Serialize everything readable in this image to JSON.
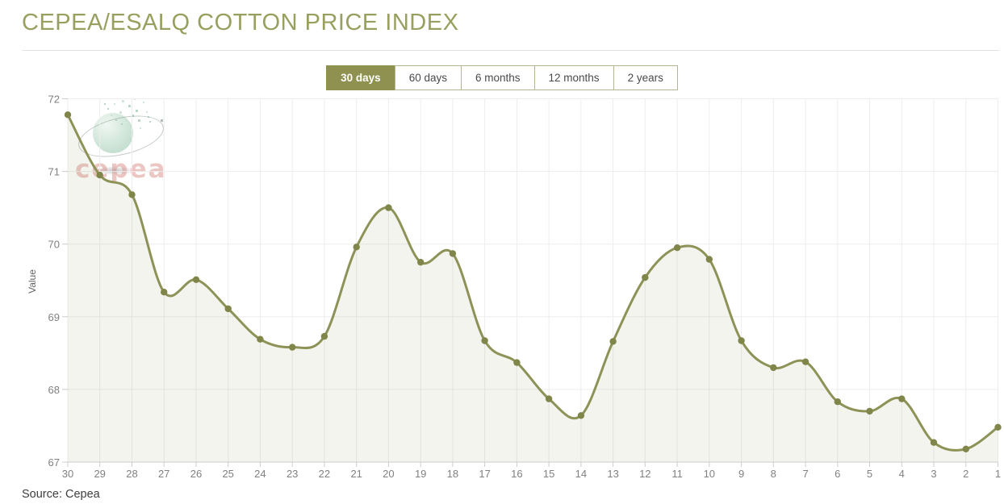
{
  "page": {
    "title": "CEPEA/ESALQ COTTON PRICE INDEX",
    "source": "Source: Cepea"
  },
  "tabs": {
    "items": [
      {
        "label": "30 days",
        "active": true
      },
      {
        "label": "60 days",
        "active": false
      },
      {
        "label": "6 months",
        "active": false
      },
      {
        "label": "12 months",
        "active": false
      },
      {
        "label": "2 years",
        "active": false
      }
    ]
  },
  "watermark": {
    "text": "cepea"
  },
  "colors": {
    "title": "#99a05f",
    "accent": "#8f9150",
    "line": "#8d9257",
    "marker": "#80854a",
    "area": "rgba(141,146,87,0.10)",
    "grid": "#ededed",
    "axis": "#cccccc",
    "tick_label": "#808080",
    "axis_title": "#666666"
  },
  "chart_data": {
    "type": "line",
    "smooth": true,
    "title": "CEPEA/ESALQ COTTON PRICE INDEX",
    "xlabel": "",
    "ylabel": "Value",
    "categories": [
      "30",
      "29",
      "28",
      "27",
      "26",
      "25",
      "24",
      "23",
      "22",
      "21",
      "20",
      "19",
      "18",
      "17",
      "16",
      "15",
      "14",
      "13",
      "12",
      "11",
      "10",
      "9",
      "8",
      "7",
      "6",
      "5",
      "4",
      "3",
      "2",
      "1"
    ],
    "values": [
      71.78,
      70.95,
      70.68,
      69.34,
      69.51,
      69.11,
      68.69,
      68.58,
      68.73,
      69.96,
      70.5,
      69.75,
      69.87,
      68.67,
      68.37,
      67.87,
      67.64,
      68.66,
      69.54,
      69.95,
      69.79,
      68.67,
      68.3,
      68.38,
      67.83,
      67.7,
      67.87,
      67.27,
      67.18,
      67.48
    ],
    "ylim": [
      67,
      72
    ],
    "yticks": [
      67,
      68,
      69,
      70,
      71,
      72
    ],
    "grid": true,
    "legend": false
  }
}
